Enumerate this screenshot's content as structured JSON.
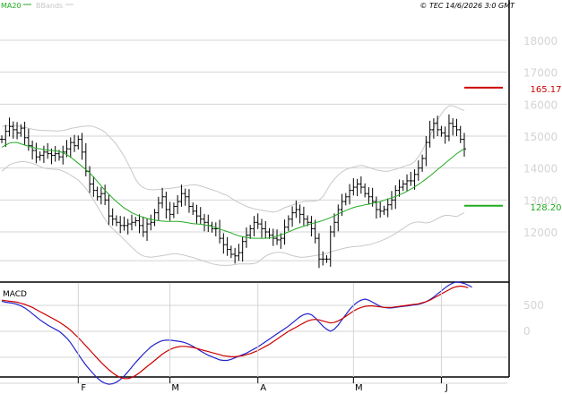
{
  "header": {
    "indicator_ma": "MA20",
    "indicator_bb": "BBands",
    "copyright": "© TEC 14/6/2026 3:0 GMT"
  },
  "colors": {
    "candle": "#000000",
    "ma20": "#22aa22",
    "bbands": "#c8c8c8",
    "resistance": "#cc0000",
    "support": "#22aa22",
    "macd": "#2222cc",
    "signal": "#cc0000",
    "grid": "#d4d4d4",
    "axis_text": "#d4d4d4"
  },
  "chart_data": [
    {
      "type": "candlestick",
      "title": "",
      "x_months": [
        {
          "label": "F",
          "index": 20
        },
        {
          "label": "M",
          "index": 44
        },
        {
          "label": "A",
          "index": 67
        },
        {
          "label": "M",
          "index": 92
        },
        {
          "label": "J",
          "index": 115
        }
      ],
      "y_ticks": [
        12000,
        13000,
        14000,
        15000,
        16000,
        17000,
        18000
      ],
      "ylim": [
        10700,
        18900
      ],
      "grid": true,
      "closes": [
        14900,
        15150,
        15300,
        15200,
        15100,
        15250,
        14950,
        14700,
        14550,
        14350,
        14400,
        14500,
        14450,
        14400,
        14450,
        14350,
        14500,
        14600,
        14800,
        14700,
        14900,
        14500,
        13900,
        13500,
        13300,
        13100,
        13200,
        13000,
        12500,
        12400,
        12300,
        12200,
        12200,
        12250,
        12300,
        12350,
        12200,
        12000,
        12250,
        12300,
        12600,
        12900,
        13100,
        12700,
        12550,
        12800,
        12950,
        13200,
        13100,
        12800,
        12650,
        12500,
        12400,
        12300,
        12200,
        12100,
        12100,
        11800,
        11600,
        11450,
        11300,
        11250,
        11350,
        11700,
        11900,
        12100,
        12300,
        12250,
        12100,
        12000,
        11900,
        11800,
        11750,
        11800,
        12150,
        12400,
        12600,
        12700,
        12550,
        12400,
        12300,
        12100,
        11800,
        11150,
        11150,
        11150,
        12000,
        12300,
        12700,
        12950,
        13100,
        13300,
        13400,
        13500,
        13400,
        13200,
        13100,
        12950,
        12700,
        12650,
        12700,
        12850,
        13000,
        13300,
        13400,
        13500,
        13600,
        13600,
        13800,
        14000,
        14300,
        14800,
        15200,
        15400,
        15200,
        15100,
        15000,
        15400,
        15300,
        15200,
        14900,
        14600
      ],
      "ma20": [
        14650,
        14720,
        14780,
        14800,
        14800,
        14760,
        14720,
        14680,
        14650,
        14620,
        14600,
        14580,
        14560,
        14550,
        14540,
        14520,
        14480,
        14420,
        14340,
        14250,
        14150,
        14050,
        13950,
        13850,
        13720,
        13580,
        13440,
        13300,
        13180,
        13060,
        12950,
        12850,
        12750,
        12680,
        12600,
        12550,
        12500,
        12460,
        12420,
        12390,
        12370,
        12350,
        12340,
        12330,
        12330,
        12330,
        12330,
        12320,
        12300,
        12280,
        12260,
        12250,
        12240,
        12220,
        12200,
        12180,
        12140,
        12090,
        12050,
        12010,
        11970,
        11920,
        11880,
        11850,
        11830,
        11810,
        11800,
        11800,
        11800,
        11800,
        11810,
        11840,
        11870,
        11910,
        11950,
        12000,
        12050,
        12100,
        12140,
        12180,
        12220,
        12260,
        12290,
        12320,
        12360,
        12400,
        12450,
        12500,
        12560,
        12620,
        12670,
        12720,
        12760,
        12800,
        12820,
        12850,
        12870,
        12900,
        12920,
        12950,
        12990,
        13030,
        13070,
        13110,
        13160,
        13210,
        13270,
        13340,
        13410,
        13490,
        13570,
        13660,
        13750,
        13850,
        13950,
        14050,
        14150,
        14250,
        14350,
        14450,
        14530,
        14610
      ],
      "bb_upper": [
        15300,
        15320,
        15330,
        15330,
        15320,
        15300,
        15280,
        15240,
        15220,
        15200,
        15180,
        15180,
        15170,
        15170,
        15160,
        15160,
        15180,
        15200,
        15240,
        15260,
        15280,
        15300,
        15310,
        15320,
        15300,
        15250,
        15200,
        15120,
        15000,
        14880,
        14740,
        14560,
        14370,
        14140,
        13900,
        13650,
        13480,
        13390,
        13340,
        13320,
        13320,
        13330,
        13340,
        13350,
        13360,
        13380,
        13400,
        13420,
        13440,
        13460,
        13480,
        13470,
        13440,
        13400,
        13360,
        13320,
        13280,
        13240,
        13180,
        13140,
        13060,
        12980,
        12920,
        12860,
        12800,
        12760,
        12720,
        12700,
        12680,
        12660,
        12640,
        12620,
        12640,
        12700,
        12760,
        12800,
        12840,
        12880,
        12920,
        12950,
        12960,
        12960,
        12970,
        13000,
        13100,
        13300,
        13500,
        13650,
        13780,
        13880,
        13950,
        14000,
        14030,
        14060,
        14080,
        14060,
        14020,
        13980,
        13940,
        13920,
        13900,
        13900,
        13930,
        13960,
        14000,
        14040,
        14080,
        14120,
        14200,
        14350,
        14550,
        14780,
        15000,
        15250,
        15500,
        15700,
        15850,
        15950,
        15950,
        15900,
        15850,
        15800
      ],
      "bb_lower": [
        13900,
        14000,
        14100,
        14150,
        14180,
        14200,
        14200,
        14180,
        14150,
        14100,
        14050,
        14000,
        13980,
        13970,
        13960,
        13950,
        13900,
        13850,
        13780,
        13700,
        13620,
        13500,
        13360,
        13200,
        13000,
        12800,
        12600,
        12400,
        12220,
        12100,
        11990,
        11880,
        11760,
        11640,
        11520,
        11410,
        11310,
        11250,
        11220,
        11210,
        11220,
        11240,
        11260,
        11280,
        11300,
        11320,
        11310,
        11290,
        11260,
        11230,
        11200,
        11160,
        11120,
        11080,
        11040,
        11000,
        10980,
        10960,
        10950,
        10950,
        10960,
        10980,
        11000,
        11000,
        11000,
        11000,
        11010,
        11050,
        11150,
        11240,
        11300,
        11340,
        11360,
        11360,
        11340,
        11300,
        11260,
        11230,
        11210,
        11210,
        11220,
        11240,
        11260,
        11280,
        11300,
        11330,
        11370,
        11410,
        11440,
        11470,
        11500,
        11520,
        11540,
        11550,
        11560,
        11580,
        11600,
        11630,
        11670,
        11710,
        11760,
        11820,
        11880,
        11950,
        12030,
        12110,
        12190,
        12260,
        12300,
        12310,
        12300,
        12280,
        12300,
        12350,
        12420,
        12480,
        12520,
        12520,
        12500,
        12480,
        12540,
        12600
      ],
      "annotations": [
        {
          "label": "165.17",
          "value": 16517,
          "color": "resistance"
        },
        {
          "label": "128.20",
          "value": 12820,
          "color": "support"
        }
      ]
    },
    {
      "type": "line",
      "title": "MACD",
      "y_ticks": [
        0,
        500
      ],
      "ylim": [
        -1300,
        1300
      ],
      "series": [
        {
          "name": "",
          "color": "macd",
          "values": [
            580,
            560,
            550,
            540,
            520,
            490,
            450,
            400,
            340,
            280,
            220,
            170,
            120,
            80,
            40,
            0,
            -60,
            -130,
            -220,
            -330,
            -440,
            -550,
            -650,
            -740,
            -820,
            -900,
            -960,
            -1000,
            -1020,
            -1010,
            -980,
            -930,
            -860,
            -780,
            -690,
            -600,
            -520,
            -440,
            -370,
            -300,
            -250,
            -210,
            -180,
            -170,
            -170,
            -180,
            -190,
            -200,
            -220,
            -250,
            -290,
            -330,
            -380,
            -420,
            -460,
            -490,
            -520,
            -550,
            -560,
            -560,
            -540,
            -510,
            -480,
            -450,
            -420,
            -380,
            -340,
            -300,
            -250,
            -200,
            -150,
            -100,
            -50,
            0,
            50,
            100,
            160,
            220,
            280,
            320,
            340,
            320,
            260,
            180,
            100,
            40,
            0,
            40,
            120,
            220,
            320,
            420,
            500,
            560,
            600,
            620,
            600,
            560,
            520,
            480,
            460,
            450,
            450,
            460,
            470,
            480,
            490,
            500,
            510,
            520,
            540,
            570,
            610,
            660,
            720,
            780,
            840,
            890,
            930,
            950,
            940,
            920,
            890,
            850
          ]
        },
        {
          "name": "",
          "color": "signal",
          "values": [
            600,
            590,
            580,
            570,
            560,
            540,
            520,
            490,
            460,
            420,
            380,
            340,
            300,
            260,
            220,
            180,
            130,
            80,
            20,
            -50,
            -120,
            -200,
            -280,
            -360,
            -440,
            -520,
            -600,
            -670,
            -740,
            -800,
            -850,
            -890,
            -910,
            -910,
            -890,
            -850,
            -800,
            -740,
            -680,
            -620,
            -560,
            -500,
            -440,
            -390,
            -350,
            -320,
            -300,
            -290,
            -290,
            -300,
            -310,
            -330,
            -350,
            -370,
            -390,
            -410,
            -430,
            -450,
            -470,
            -480,
            -490,
            -490,
            -480,
            -470,
            -450,
            -430,
            -400,
            -370,
            -330,
            -290,
            -250,
            -200,
            -150,
            -100,
            -50,
            0,
            40,
            80,
            120,
            160,
            200,
            220,
            230,
            220,
            200,
            180,
            160,
            170,
            200,
            240,
            290,
            340,
            390,
            430,
            460,
            480,
            490,
            490,
            480,
            470,
            460,
            460,
            460,
            470,
            480,
            490,
            500,
            510,
            520,
            530,
            550,
            570,
            600,
            640,
            680,
            720,
            760,
            800,
            840,
            860,
            870,
            860,
            840
          ]
        }
      ]
    }
  ]
}
